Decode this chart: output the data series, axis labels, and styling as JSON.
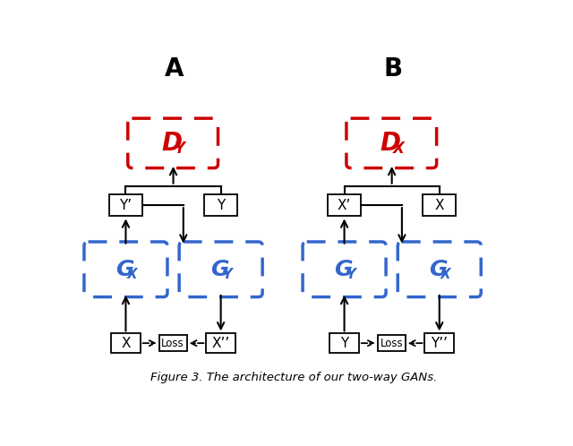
{
  "title": "Figure 3. The architecture of our two-way GANs.",
  "background_color": "#ffffff",
  "red_color": "#cc0000",
  "blue_color": "#3366cc",
  "black_color": "#000000",
  "panel_A_label": "A",
  "panel_B_label": "B",
  "figsize": [
    6.4,
    4.98
  ],
  "dpi": 100,
  "diagram_A": {
    "D_main": "D",
    "D_sub": "Y",
    "G1_main": "G",
    "G1_sub": "X",
    "G2_main": "G",
    "G2_sub": "Y",
    "top_left_label": "Y’",
    "top_right_label": "Y",
    "bot_left_label": "X",
    "bot_mid_label": "Loss",
    "bot_right_label": "X’’"
  },
  "diagram_B": {
    "D_main": "D",
    "D_sub": "X",
    "G1_main": "G",
    "G1_sub": "Y",
    "G2_main": "G",
    "G2_sub": "X",
    "top_left_label": "X’",
    "top_right_label": "X",
    "bot_left_label": "Y",
    "bot_mid_label": "Loss",
    "bot_right_label": "Y’’"
  }
}
